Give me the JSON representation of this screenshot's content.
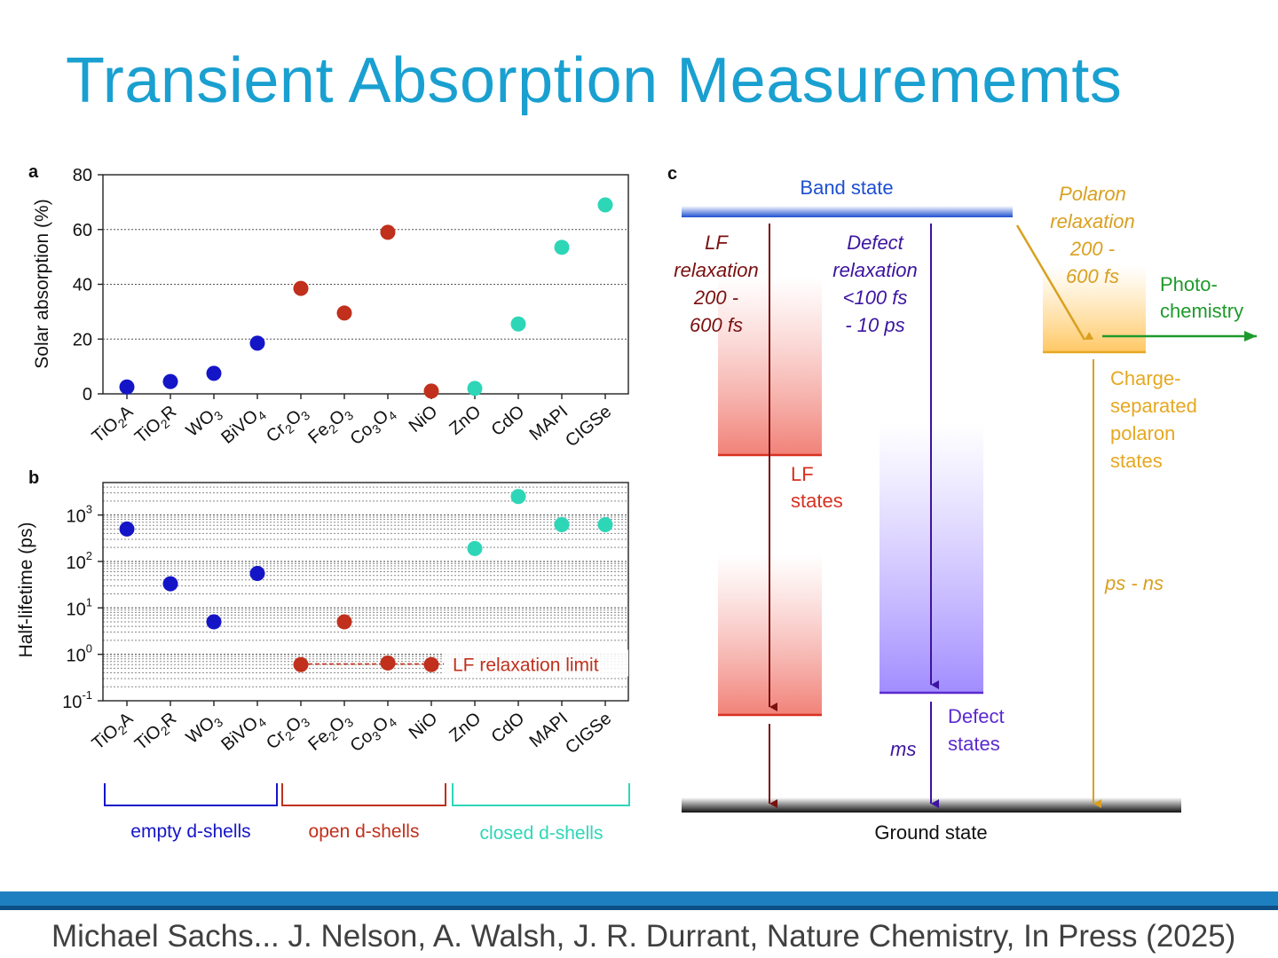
{
  "slide": {
    "title": "Transient Absorption Measurememts",
    "citation": "Michael Sachs... J. Nelson, A. Walsh, J. R. Durrant, Nature Chemistry, In Press (2025)"
  },
  "colors": {
    "title": "#1aa0d0",
    "empty_d_shells": "#1515c8",
    "open_d_shells": "#c0301c",
    "closed_d_shells": "#2ed6b8",
    "lf": "#7a1010",
    "defect": "#3d14a0",
    "polaron": "#d9a020",
    "photochemistry": "#1e9a2a",
    "band": "#1d4fd0",
    "footer_bar": "#1e7fc0"
  },
  "chart_data": [
    {
      "panel": "a",
      "type": "scatter",
      "ylabel": "Solar absorption (%)",
      "ylim": [
        0,
        80
      ],
      "yticks": [
        "0",
        "20",
        "40",
        "60",
        "80"
      ],
      "grid": "horizontal dotted",
      "categories": [
        "TiO2A",
        "TiO2R",
        "WO3",
        "BiVO4",
        "Cr2O3",
        "Fe2O3",
        "Co3O4",
        "NiO",
        "ZnO",
        "CdO",
        "MAPI",
        "CIGSe"
      ],
      "groups": [
        "empty",
        "empty",
        "empty",
        "empty",
        "open",
        "open",
        "open",
        "open",
        "closed",
        "closed",
        "closed",
        "closed"
      ],
      "values": [
        2.5,
        4.5,
        7.5,
        18.5,
        38.5,
        29.5,
        59,
        1,
        2,
        25.5,
        53.5,
        69
      ]
    },
    {
      "panel": "b",
      "type": "scatter",
      "ylabel": "Half-lifetime (ps)",
      "yscale": "log",
      "ylim": [
        0.1,
        5000
      ],
      "yticks": [
        "10-1",
        "100",
        "101",
        "102",
        "103"
      ],
      "categories": [
        "TiO2A",
        "TiO2R",
        "WO3",
        "BiVO4",
        "Cr2O3",
        "Fe2O3",
        "Co3O4",
        "NiO",
        "ZnO",
        "CdO",
        "MAPI",
        "CIGSe"
      ],
      "values": [
        500,
        33,
        5,
        55,
        0.6,
        5,
        0.65,
        0.6,
        190,
        2500,
        620,
        620
      ],
      "annotation": "LF relaxation limit",
      "annotation_level": 0.62
    }
  ],
  "group_labels": {
    "empty": "empty d-shells",
    "open": "open d-shells",
    "closed": "closed d-shells"
  },
  "diagram": {
    "panel": "c",
    "band_state": "Band state",
    "ground_state": "Ground state",
    "lf_relaxation": [
      "LF",
      "relaxation",
      "200 -",
      "600 fs"
    ],
    "defect_relaxation": [
      "Defect",
      "relaxation",
      "<100 fs",
      "- 10 ps"
    ],
    "polaron_relaxation": [
      "Polaron",
      "relaxation",
      "200 -",
      "600 fs"
    ],
    "photochemistry": [
      "Photo-",
      "chemistry"
    ],
    "lf_states": [
      "LF",
      "states"
    ],
    "defect_states": [
      "Defect",
      "states"
    ],
    "charge_separated": [
      "Charge-",
      "separated",
      "polaron",
      "states"
    ],
    "ms": "ms",
    "ps_ns": "ps - ns"
  }
}
